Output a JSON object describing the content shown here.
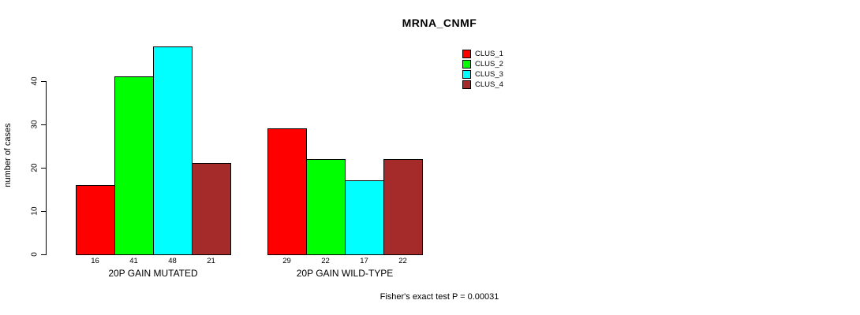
{
  "chart_data": {
    "type": "bar",
    "title": "MRNA_CNMF",
    "xlabel": "",
    "ylabel": "number of cases",
    "ylim": [
      0,
      48
    ],
    "yticks": [
      0,
      10,
      20,
      30,
      40
    ],
    "grid": false,
    "legend_position": "top-right",
    "categories": [
      "20P GAIN MUTATED",
      "20P GAIN WILD-TYPE"
    ],
    "series": [
      {
        "name": "CLUS_1",
        "color": "#ff0000",
        "values": [
          16,
          29
        ]
      },
      {
        "name": "CLUS_2",
        "color": "#00ff00",
        "values": [
          41,
          22
        ]
      },
      {
        "name": "CLUS_3",
        "color": "#00ffff",
        "values": [
          48,
          17
        ]
      },
      {
        "name": "CLUS_4",
        "color": "#a52a2a",
        "values": [
          21,
          22
        ]
      }
    ],
    "bar_value_labels": [
      [
        16,
        41,
        48,
        21
      ],
      [
        29,
        22,
        17,
        22
      ]
    ],
    "annotation": "Fisher's exact test P = 0.00031"
  },
  "colors": {
    "background": "#ffffff",
    "axis": "#000000",
    "text": "#000000"
  }
}
